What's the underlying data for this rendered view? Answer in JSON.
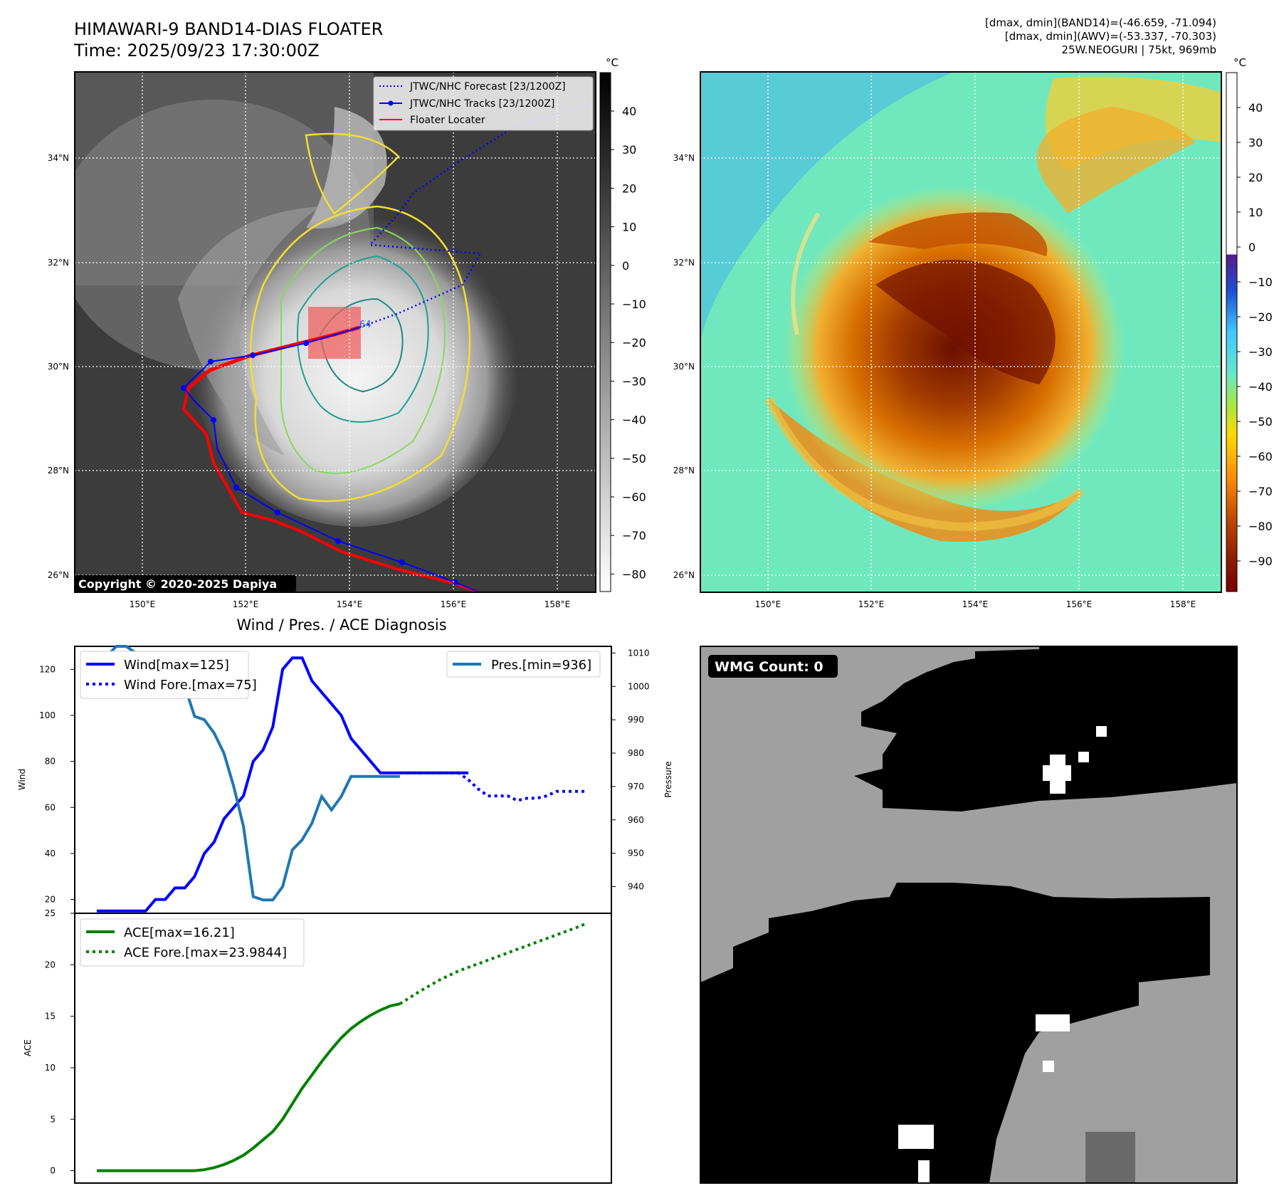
{
  "header": {
    "title_line1": "HIMAWARI-9 BAND14-DIAS FLOATER",
    "title_line2": "Time: 2025/09/23 17:30:00Z",
    "info_line1": "[dmax, dmin](BAND14)=(-46.659, -71.094)",
    "info_line2": "[dmax, dmin](AWV)=(-53.337, -70.303)",
    "info_line3": "25W.NEOGURI | 75kt, 969mb"
  },
  "copyright": "Copyright © 2020-2025 Dapiya",
  "ir_panel": {
    "lat_labels": [
      "34°N",
      "32°N",
      "30°N",
      "28°N",
      "26°N"
    ],
    "lon_labels": [
      "150°E",
      "152°E",
      "154°E",
      "156°E",
      "158°E"
    ],
    "colorbar_unit": "°C",
    "colorbar_ticks": [
      "40",
      "30",
      "20",
      "10",
      "0",
      "−10",
      "−20",
      "−30",
      "−40",
      "−50",
      "−60",
      "−70",
      "−80"
    ],
    "legend": [
      {
        "label": "JTWC/NHC Forecast [23/1200Z]",
        "color": "#0000ff",
        "style": "dotted"
      },
      {
        "label": "JTWC/NHC Tracks [23/1200Z]",
        "color": "#0000ff",
        "style": "marker"
      },
      {
        "label": "Floater Locater",
        "color": "#ff0000",
        "style": "solid"
      }
    ],
    "contour_label": "64"
  },
  "wv_panel": {
    "lat_labels": [
      "34°N",
      "32°N",
      "30°N",
      "28°N",
      "26°N"
    ],
    "lon_labels": [
      "150°E",
      "152°E",
      "154°E",
      "156°E",
      "158°E"
    ],
    "colorbar_unit": "°C",
    "colorbar_ticks": [
      "40",
      "30",
      "20",
      "10",
      "0",
      "−10",
      "−20",
      "−30",
      "−40",
      "−50",
      "−60",
      "−70",
      "−80",
      "−90"
    ]
  },
  "wmg": {
    "label": "WMG Count: 0"
  },
  "chart_data": [
    {
      "type": "line",
      "title": "Wind / Pres. / ACE Diagnosis",
      "ylabel": "Wind",
      "y2label": "Pressure",
      "ylim": [
        14,
        130
      ],
      "y2lim": [
        932,
        1012
      ],
      "yticks": [
        20,
        40,
        60,
        80,
        100,
        120
      ],
      "y2ticks": [
        940,
        950,
        960,
        970,
        980,
        990,
        1000,
        1010
      ],
      "x_count": 50,
      "series": [
        {
          "name": "Wind[max=125]",
          "color": "#0000ff",
          "style": "solid",
          "axis": "left",
          "x": [
            0,
            2,
            4,
            5,
            6,
            7,
            8,
            9,
            10,
            11,
            12,
            13,
            14,
            15,
            16,
            17,
            18,
            19,
            20,
            21,
            22,
            23,
            24,
            25,
            26,
            27,
            28,
            29,
            30,
            31,
            32,
            33,
            34,
            35,
            36,
            37,
            38
          ],
          "values": [
            15,
            15,
            15,
            15,
            20,
            20,
            25,
            25,
            30,
            40,
            45,
            55,
            60,
            65,
            80,
            85,
            95,
            120,
            125,
            125,
            115,
            110,
            105,
            100,
            90,
            85,
            80,
            75,
            75,
            75,
            75,
            75,
            75,
            75,
            75,
            75,
            75
          ]
        },
        {
          "name": "Wind Fore.[max=75]",
          "color": "#0000ff",
          "style": "dotted",
          "axis": "left",
          "x": [
            31,
            35,
            36,
            37,
            38,
            39,
            40,
            41,
            42,
            43,
            44,
            45,
            46,
            47,
            48,
            49,
            50
          ],
          "values": [
            75,
            75,
            75,
            75,
            72,
            68,
            65,
            65,
            65,
            63,
            64,
            64,
            65,
            67,
            67,
            67,
            67
          ]
        },
        {
          "name": "Pres.[min=936]",
          "color": "#1f77b4",
          "style": "solid",
          "axis": "right",
          "x": [
            0,
            1,
            2,
            3,
            4,
            5,
            6,
            7,
            8,
            9,
            10,
            11,
            12,
            13,
            14,
            15,
            16,
            17,
            18,
            19,
            20,
            21,
            22,
            23,
            24,
            25,
            26,
            27,
            28,
            29,
            30,
            31
          ],
          "values": [
            1009,
            1009,
            1012,
            1012,
            1010,
            1009,
            1009,
            1009,
            1008,
            1000,
            991,
            990,
            986,
            980,
            970,
            958,
            937,
            936,
            936,
            940,
            951,
            954,
            959,
            967,
            963,
            967,
            973,
            973,
            973,
            973,
            973,
            973
          ]
        }
      ],
      "legend_left": [
        "Wind[max=125]",
        "Wind Fore.[max=75]"
      ],
      "legend_right": [
        "Pres.[min=936]"
      ]
    },
    {
      "type": "line",
      "ylabel": "ACE",
      "ylim": [
        -1.2,
        25
      ],
      "yticks": [
        0,
        5,
        10,
        15,
        20,
        25
      ],
      "x_count": 50,
      "series": [
        {
          "name": "ACE[max=16.21]",
          "color": "#008000",
          "style": "solid",
          "x": [
            0,
            2,
            4,
            6,
            8,
            10,
            11,
            12,
            13,
            14,
            15,
            16,
            17,
            18,
            19,
            20,
            21,
            22,
            23,
            24,
            25,
            26,
            27,
            28,
            29,
            30,
            31
          ],
          "values": [
            0,
            0,
            0,
            0,
            0,
            0,
            0.1,
            0.3,
            0.6,
            1.0,
            1.5,
            2.2,
            3.0,
            3.8,
            5.0,
            6.5,
            8.0,
            9.3,
            10.6,
            11.8,
            12.9,
            13.8,
            14.5,
            15.1,
            15.6,
            16.0,
            16.21
          ]
        },
        {
          "name": "ACE Fore.[max=23.9844]",
          "color": "#008000",
          "style": "dotted",
          "x": [
            31,
            33,
            35,
            37,
            39,
            41,
            43,
            45,
            47,
            49,
            50
          ],
          "values": [
            16.21,
            17.4,
            18.5,
            19.4,
            20.1,
            20.8,
            21.5,
            22.2,
            22.9,
            23.6,
            23.9844
          ]
        }
      ]
    }
  ]
}
